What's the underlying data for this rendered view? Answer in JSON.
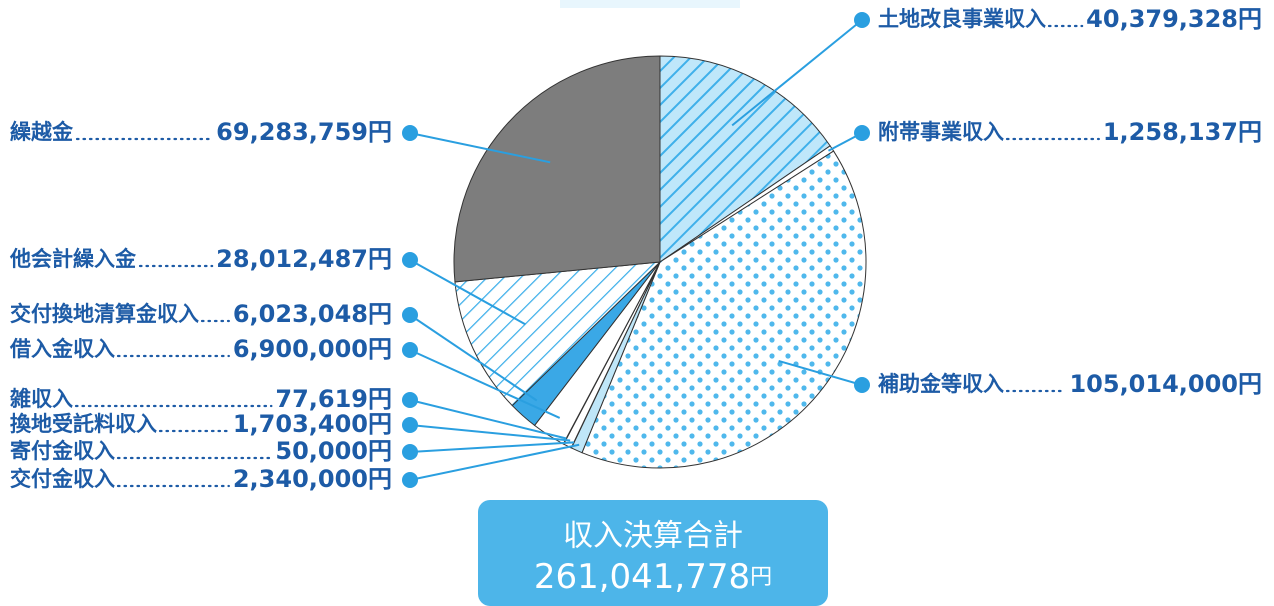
{
  "chart_data": {
    "type": "pie",
    "categories": [
      "土地改良事業収入",
      "附帯事業収入",
      "補助金等収入",
      "交付金収入",
      "寄付金収入",
      "換地受託料収入",
      "雑収入",
      "借入金収入",
      "交付換地清算金収入",
      "他会計繰入金",
      "繰越金"
    ],
    "values": [
      40379328,
      1258137,
      105014000,
      2340000,
      50000,
      1703400,
      77619,
      6900000,
      6023048,
      28012487,
      69283759
    ],
    "value_labels": [
      "40,379,328円",
      "1,258,137円",
      "105,014,000円",
      "2,340,000円",
      "50,000円",
      "1,703,400円",
      "77,619円",
      "6,900,000円",
      "6,023,048円",
      "28,012,487円",
      "69,283,759円"
    ],
    "colors": [
      "#3fb0ea",
      "#ffffff",
      "#4fb8ec",
      "#bfe6f8",
      "#444444",
      "#ffffff",
      "#888888",
      "#ffffff",
      "#3aa8e6",
      "#3fb0ea",
      "#7d7d7d"
    ],
    "patterns": [
      "hatch",
      "none",
      "dots",
      "none",
      "none",
      "none",
      "none",
      "none",
      "none",
      "hatch-light",
      "none"
    ],
    "total": {
      "label": "収入決算合計",
      "value": 261041778,
      "value_label": "261,041,778",
      "unit": "円"
    }
  }
}
